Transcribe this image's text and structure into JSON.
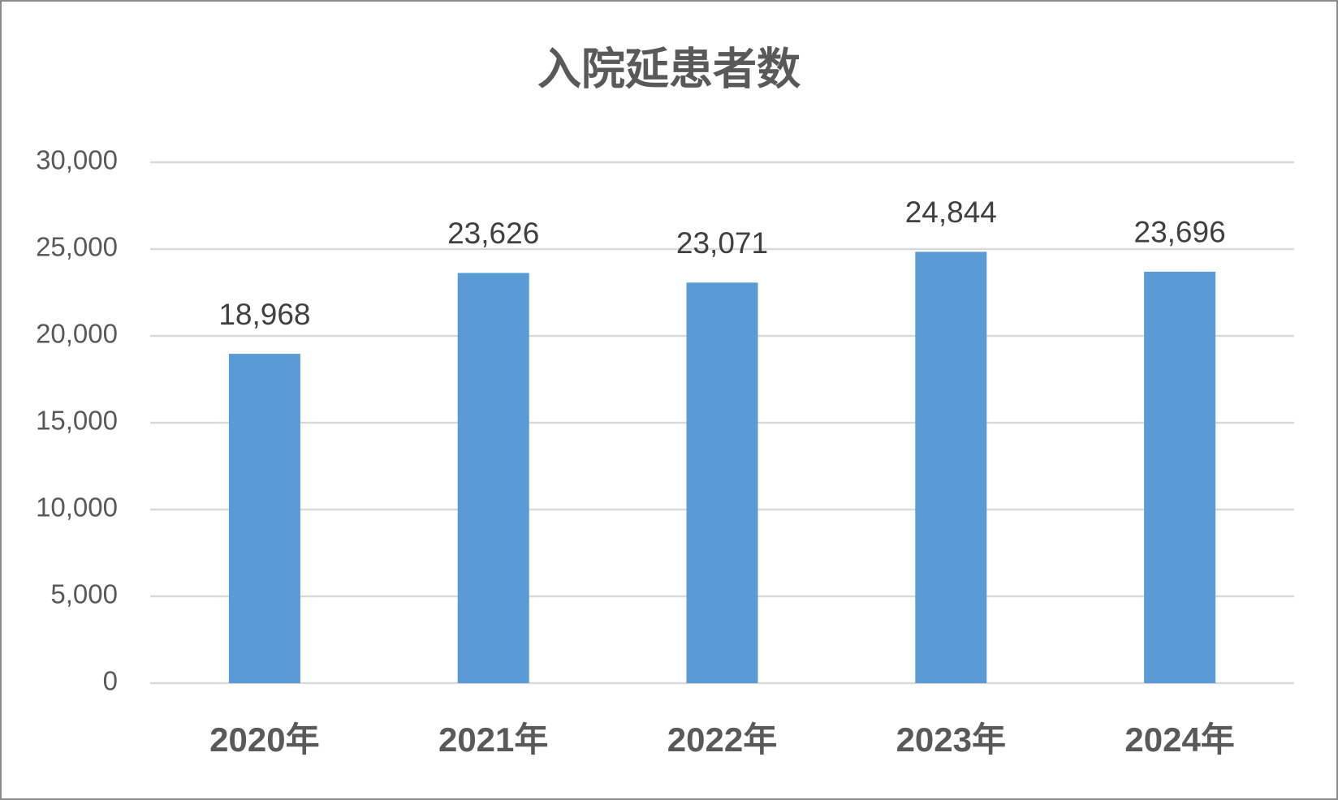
{
  "chart_data": {
    "type": "bar",
    "title": "入院延患者数",
    "categories": [
      "2020年",
      "2021年",
      "2022年",
      "2023年",
      "2024年"
    ],
    "values": [
      18968,
      23626,
      23071,
      24844,
      23696
    ],
    "value_labels": [
      "18,968",
      "23,626",
      "23,071",
      "24,844",
      "23,696"
    ],
    "color": "#5b9bd5",
    "ylim": [
      0,
      30000
    ],
    "yticks": [
      0,
      {
        "value": 5000,
        "label": "5,000"
      },
      {
        "value": 10000,
        "label": "10,000"
      },
      {
        "value": 15000,
        "label": "15,000"
      },
      {
        "value": 20000,
        "label": "20,000"
      },
      {
        "value": 25000,
        "label": "25,000"
      },
      {
        "value": 30000,
        "label": "30,000"
      }
    ],
    "grid": true
  }
}
